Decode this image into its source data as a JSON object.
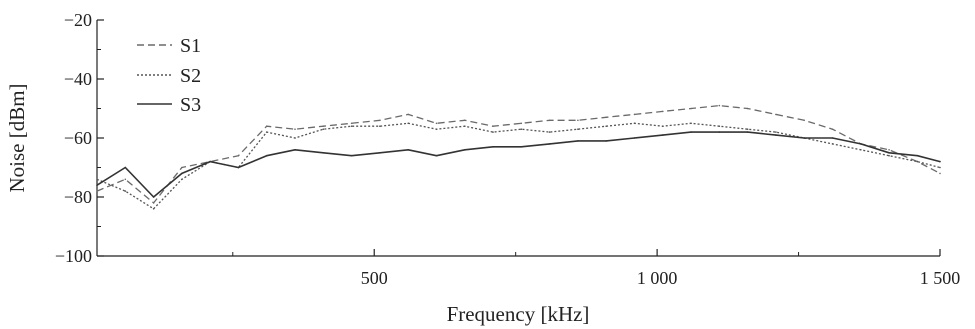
{
  "chart_data": {
    "type": "line",
    "title": "",
    "xlabel": "Frequency [kHz]",
    "ylabel": "Noise [dBm]",
    "xlim": [
      10,
      1500
    ],
    "ylim": [
      -100,
      -20
    ],
    "x_ticks": [
      500,
      1000,
      1500
    ],
    "x_tick_labels": [
      "500",
      "1 000",
      "1 500"
    ],
    "y_ticks": [
      -100,
      -80,
      -60,
      -40,
      -20
    ],
    "y_tick_labels": [
      "−100",
      "−80",
      "−60",
      "−40",
      "−20"
    ],
    "grid": false,
    "legend_position": "top-left",
    "x": [
      10,
      60,
      110,
      160,
      210,
      260,
      310,
      360,
      410,
      460,
      510,
      560,
      610,
      660,
      710,
      760,
      810,
      860,
      910,
      960,
      1010,
      1060,
      1110,
      1160,
      1210,
      1260,
      1310,
      1360,
      1410,
      1460,
      1500
    ],
    "series": [
      {
        "name": "S1",
        "style": "dashed",
        "color": "#6a6a6a",
        "values": [
          -78,
          -74,
          -82,
          -70,
          -68,
          -66,
          -56,
          -57,
          -56,
          -55,
          -54,
          -52,
          -55,
          -54,
          -56,
          -55,
          -54,
          -54,
          -53,
          -52,
          -51,
          -50,
          -49,
          -50,
          -52,
          -54,
          -57,
          -62,
          -64,
          -68,
          -72
        ]
      },
      {
        "name": "S2",
        "style": "dotted",
        "color": "#555555",
        "values": [
          -74,
          -78,
          -84,
          -74,
          -68,
          -70,
          -58,
          -60,
          -57,
          -56,
          -56,
          -55,
          -57,
          -56,
          -58,
          -57,
          -58,
          -57,
          -56,
          -55,
          -56,
          -55,
          -56,
          -57,
          -58,
          -60,
          -62,
          -64,
          -66,
          -68,
          -70
        ]
      },
      {
        "name": "S3",
        "style": "solid",
        "color": "#333333",
        "values": [
          -76,
          -70,
          -80,
          -72,
          -68,
          -70,
          -66,
          -64,
          -65,
          -66,
          -65,
          -64,
          -66,
          -64,
          -63,
          -63,
          -62,
          -61,
          -61,
          -60,
          -59,
          -58,
          -58,
          -58,
          -59,
          -60,
          -60,
          -62,
          -65,
          -66,
          -68
        ]
      }
    ]
  }
}
